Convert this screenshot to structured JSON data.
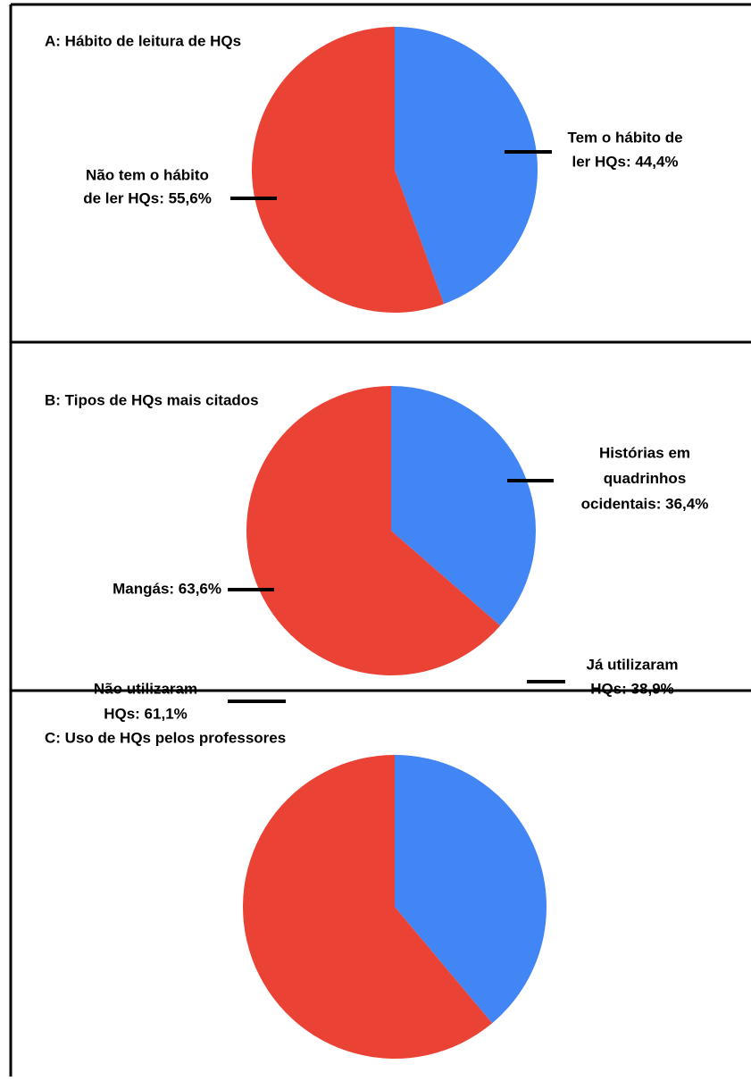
{
  "chart_data": [
    {
      "type": "pie",
      "title": "A: Hábito de leitura de HQs",
      "categories": [
        [
          "Tem o hábito de",
          "ler HQs: 44,4%"
        ],
        [
          "Não tem o hábito",
          "de ler HQs: 55,6%"
        ]
      ],
      "values": [
        44.4,
        55.6
      ],
      "colors": [
        "#4285f4",
        "#ea4335"
      ]
    },
    {
      "type": "pie",
      "title": "B: Tipos de HQs mais citados",
      "categories": [
        [
          "Histórias em",
          "quadrinhos",
          "ocidentais: 36,4%"
        ],
        [
          "Mangás: 63,6%"
        ]
      ],
      "values": [
        36.4,
        63.6
      ],
      "colors": [
        "#4285f4",
        "#ea4335"
      ]
    },
    {
      "type": "pie",
      "title": "C: Uso de HQs pelos professores",
      "categories": [
        [
          "Já utilizaram",
          "HQs: 38,9%"
        ],
        [
          "Não utilizaram",
          "HQs: 61,1%"
        ]
      ],
      "values": [
        38.9,
        61.1
      ],
      "colors": [
        "#4285f4",
        "#ea4335"
      ]
    }
  ]
}
